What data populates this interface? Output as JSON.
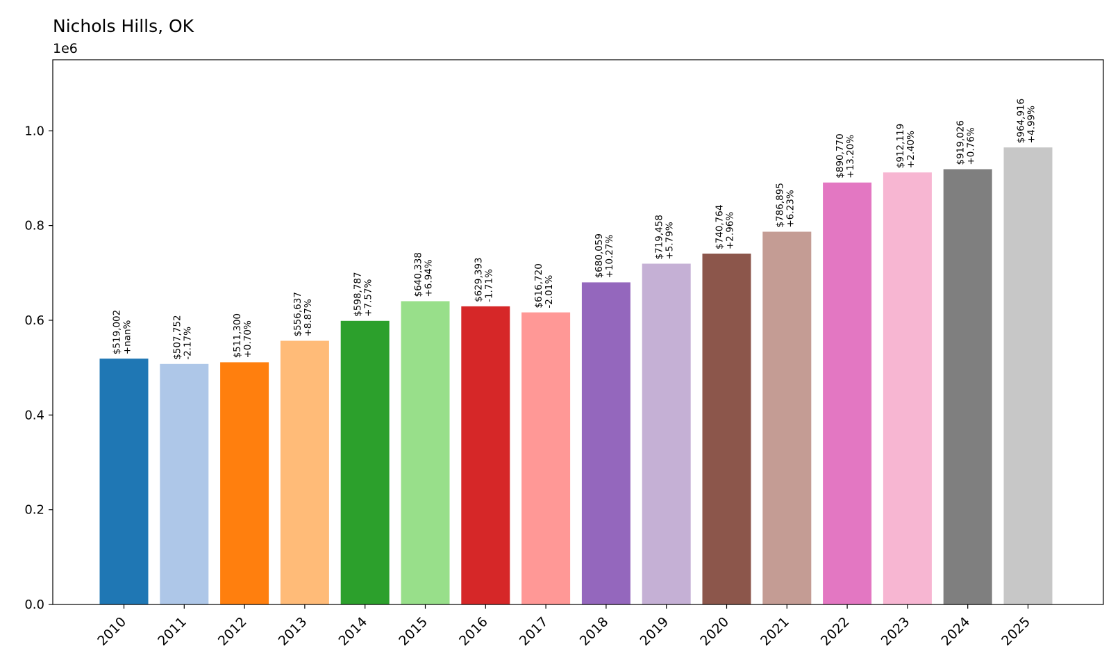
{
  "chart_data": {
    "type": "bar",
    "title": "Nichols Hills, OK",
    "y_offset_label": "1e6",
    "xlabel": "",
    "ylabel": "",
    "ylim": [
      0,
      1150000
    ],
    "yticks": [
      0.0,
      0.2,
      0.4,
      0.6,
      0.8,
      1.0
    ],
    "ytick_labels": [
      "0.0",
      "0.2",
      "0.4",
      "0.6",
      "0.8",
      "1.0"
    ],
    "grid": false,
    "legend": "none",
    "categories": [
      "2010",
      "2011",
      "2012",
      "2013",
      "2014",
      "2015",
      "2016",
      "2017",
      "2018",
      "2019",
      "2020",
      "2021",
      "2022",
      "2023",
      "2024",
      "2025"
    ],
    "values": [
      519002,
      507752,
      511300,
      556637,
      598787,
      640338,
      629393,
      616720,
      680059,
      719458,
      740764,
      786895,
      890770,
      912119,
      919026,
      964916
    ],
    "value_labels": [
      "$519,002",
      "$507,752",
      "$511,300",
      "$556,637",
      "$598,787",
      "$640,338",
      "$629,393",
      "$616,720",
      "$680,059",
      "$719,458",
      "$740,764",
      "$786,895",
      "$890,770",
      "$912,119",
      "$919,026",
      "$964,916"
    ],
    "change_labels": [
      "+nan%",
      "-2.17%",
      "+0.70%",
      "+8.87%",
      "+7.57%",
      "+6.94%",
      "-1.71%",
      "-2.01%",
      "+10.27%",
      "+5.79%",
      "+2.96%",
      "+6.23%",
      "+13.20%",
      "+2.40%",
      "+0.76%",
      "+4.99%"
    ],
    "colors": [
      "#1f77b4",
      "#aec7e8",
      "#ff7f0e",
      "#ffbb78",
      "#2ca02c",
      "#98df8a",
      "#d62728",
      "#ff9896",
      "#9467bd",
      "#c5b0d5",
      "#8c564b",
      "#c49c94",
      "#e377c2",
      "#f7b6d2",
      "#7f7f7f",
      "#c7c7c7"
    ]
  }
}
